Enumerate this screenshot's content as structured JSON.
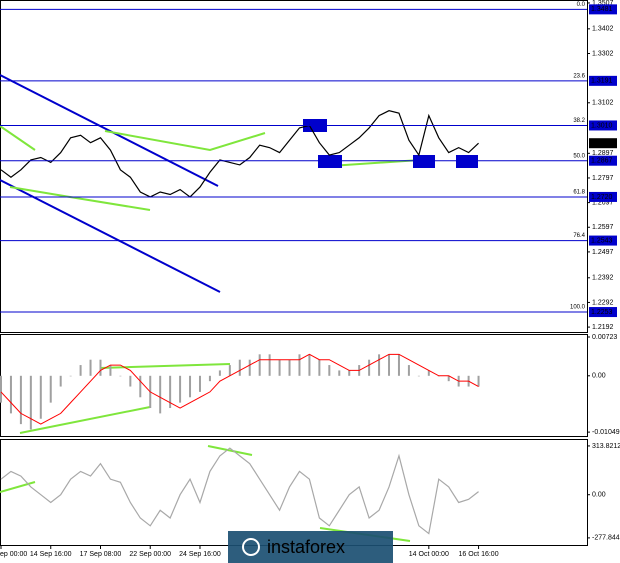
{
  "chart_data": [
    {
      "type": "line",
      "color": "#000000",
      "ylim": [
        1.2168,
        1.3519
      ],
      "yticks": [
        1.3507,
        1.3402,
        1.3302,
        1.3102,
        1.2897,
        1.2797,
        1.2697,
        1.2597,
        1.2497,
        1.2392,
        1.2292,
        1.2192
      ],
      "values": [
        1.283,
        1.28,
        1.283,
        1.287,
        1.288,
        1.286,
        1.29,
        1.296,
        1.297,
        1.294,
        1.296,
        1.291,
        1.283,
        1.28,
        1.274,
        1.272,
        1.274,
        1.273,
        1.275,
        1.272,
        1.276,
        1.282,
        1.287,
        1.286,
        1.285,
        1.288,
        1.293,
        1.292,
        1.29,
        1.295,
        1.3,
        1.301,
        1.294,
        1.289,
        1.29,
        1.293,
        1.296,
        1.3,
        1.305,
        1.307,
        1.306,
        1.295,
        1.289,
        1.305,
        1.296,
        1.29,
        1.292,
        1.29,
        1.2938
      ],
      "last_price": 1.2938,
      "levels": [
        {
          "name": "0.0",
          "value": 1.3481,
          "label": "1.3481"
        },
        {
          "name": "23.6",
          "value": 1.3191,
          "label": "1.3191"
        },
        {
          "name": "38.2",
          "value": 1.301,
          "label": "1.3010"
        },
        {
          "name": "50.0",
          "value": 1.2867,
          "label": "1.2867"
        },
        {
          "name": "61.8",
          "value": 1.272,
          "label": "1.2720"
        },
        {
          "name": "76.4",
          "value": 1.2543,
          "label": "1.2543"
        },
        {
          "name": "100.0",
          "value": 1.2253,
          "label": "1.2253"
        }
      ],
      "level_color": "#0000cc",
      "watermark": "instaforex"
    },
    {
      "type": "bar",
      "color": "#a0a0a0",
      "ylim": [
        -0.0114,
        0.0076
      ],
      "yticks": [
        0.00723,
        {
          "value": 0,
          "label": "0.00"
        },
        -0.01049
      ],
      "values": [
        -0.005,
        -0.007,
        -0.009,
        -0.01,
        -0.008,
        -0.005,
        -0.002,
        0,
        0.002,
        0.003,
        0.003,
        0.002,
        0,
        -0.002,
        -0.004,
        -0.006,
        -0.007,
        -0.006,
        -0.005,
        -0.004,
        -0.003,
        -0.001,
        0.001,
        0.002,
        0.003,
        0.003,
        0.004,
        0.004,
        0.003,
        0.003,
        0.004,
        0.004,
        0.003,
        0.002,
        0.001,
        0.001,
        0.002,
        0.003,
        0.004,
        0.004,
        0.004,
        0.002,
        0,
        0.001,
        0,
        -0.001,
        -0.002,
        -0.002,
        -0.002
      ],
      "signal": {
        "color": "#ff0000",
        "values": [
          -0.003,
          -0.005,
          -0.007,
          -0.008,
          -0.009,
          -0.008,
          -0.007,
          -0.005,
          -0.003,
          -0.001,
          0.001,
          0.002,
          0.002,
          0.001,
          -0.001,
          -0.003,
          -0.004,
          -0.005,
          -0.006,
          -0.005,
          -0.004,
          -0.003,
          -0.001,
          0,
          0.001,
          0.002,
          0.003,
          0.003,
          0.003,
          0.003,
          0.003,
          0.004,
          0.003,
          0.003,
          0.002,
          0.001,
          0.001,
          0.002,
          0.003,
          0.004,
          0.004,
          0.003,
          0.002,
          0.001,
          0,
          0,
          -0.001,
          -0.001,
          -0.002
        ]
      }
    },
    {
      "type": "line",
      "color": "#a8a8a8",
      "ylim": [
        -330,
        352
      ],
      "yticks": [
        313.8212,
        {
          "value": 0,
          "label": "0.00"
        },
        -277.8446
      ],
      "values": [
        100,
        150,
        120,
        50,
        0,
        -50,
        0,
        100,
        150,
        120,
        200,
        100,
        80,
        -50,
        -150,
        -200,
        -100,
        -150,
        0,
        100,
        -50,
        150,
        250,
        300,
        250,
        200,
        100,
        0,
        -100,
        50,
        150,
        100,
        -150,
        -200,
        -100,
        0,
        50,
        -150,
        -100,
        50,
        250,
        0,
        -200,
        -250,
        100,
        50,
        -50,
        -30,
        20
      ],
      "categories": [
        "ep 00:00",
        null,
        null,
        null,
        null,
        "14 Sep 16:00",
        null,
        null,
        null,
        null,
        "17 Sep 08:00",
        null,
        null,
        null,
        null,
        "22 Sep 00:00",
        null,
        null,
        null,
        null,
        "24 Sep 16:00",
        null,
        null,
        null,
        null,
        null,
        null,
        null,
        null,
        null,
        null,
        null,
        null,
        null,
        null,
        null,
        null,
        null,
        null,
        null,
        null,
        null,
        null,
        "14 Oct 00:00",
        null,
        null,
        null,
        null,
        "16 Oct 16:00"
      ]
    }
  ]
}
